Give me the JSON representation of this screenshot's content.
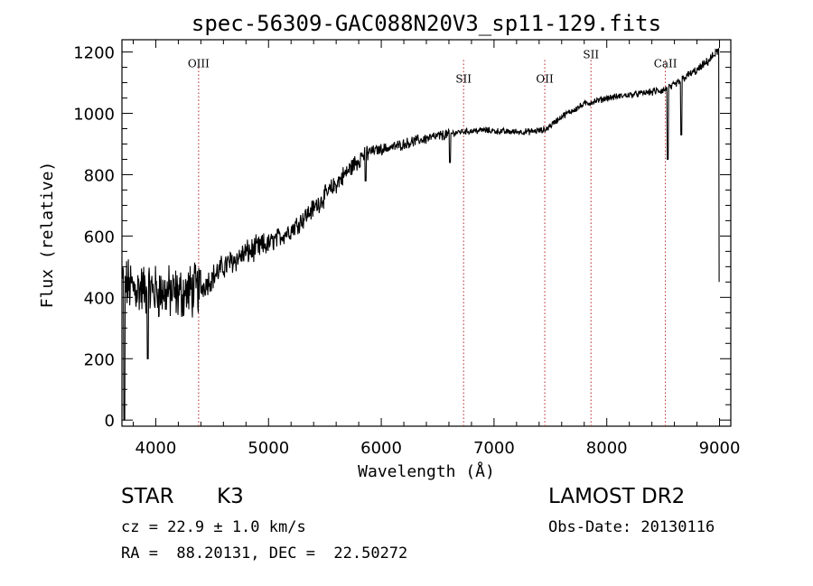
{
  "chart_data": {
    "type": "line",
    "title": "spec-56309-GAC088N20V3_sp11-129.fits",
    "xlabel": "Wavelength (Å)",
    "ylabel": "Flux (relative)",
    "xlim": [
      3700,
      9100
    ],
    "ylim": [
      -20,
      1240
    ],
    "xticks": [
      4000,
      5000,
      6000,
      7000,
      8000,
      9000
    ],
    "yticks": [
      0,
      200,
      400,
      600,
      800,
      1000,
      1200
    ],
    "grid": false,
    "line_color": "#000000",
    "marker_color": "#b22222",
    "line_markers": [
      {
        "label": "OIII",
        "x": 4380,
        "label_y": 1150
      },
      {
        "label": "SII",
        "x": 6730,
        "label_y": 1100
      },
      {
        "label": "OII",
        "x": 7450,
        "label_y": 1100
      },
      {
        "label": "SII",
        "x": 7860,
        "label_y": 1180
      },
      {
        "label": "CaII",
        "x": 8520,
        "label_y": 1150
      }
    ],
    "anchors": {
      "x": [
        3700,
        3800,
        4000,
        4200,
        4400,
        4600,
        4800,
        5000,
        5200,
        5400,
        5600,
        5750,
        5850,
        5950,
        6100,
        6300,
        6500,
        6700,
        6900,
        7100,
        7300,
        7450,
        7600,
        7800,
        8000,
        8200,
        8400,
        8500,
        8600,
        8700,
        8800,
        8900,
        9000
      ],
      "y": [
        450,
        430,
        420,
        410,
        430,
        500,
        545,
        575,
        620,
        690,
        770,
        830,
        870,
        880,
        890,
        910,
        925,
        940,
        945,
        940,
        940,
        945,
        990,
        1030,
        1050,
        1060,
        1070,
        1075,
        1090,
        1120,
        1140,
        1170,
        1210
      ]
    },
    "dips": [
      {
        "x": 3720,
        "y": 0
      },
      {
        "x": 3930,
        "y": 200
      },
      {
        "x": 5860,
        "y": 780
      },
      {
        "x": 6610,
        "y": 840
      },
      {
        "x": 8540,
        "y": 850
      },
      {
        "x": 8660,
        "y": 930
      },
      {
        "x": 9000,
        "y": 450
      }
    ]
  },
  "info": {
    "object_type": "STAR",
    "subclass": "K3",
    "survey": "LAMOST DR2",
    "velocity": "cz = 22.9 ± 1.0 km/s",
    "obs_date": "Obs-Date: 20130116",
    "coords": "RA =  88.20131, DEC =  22.50272"
  }
}
